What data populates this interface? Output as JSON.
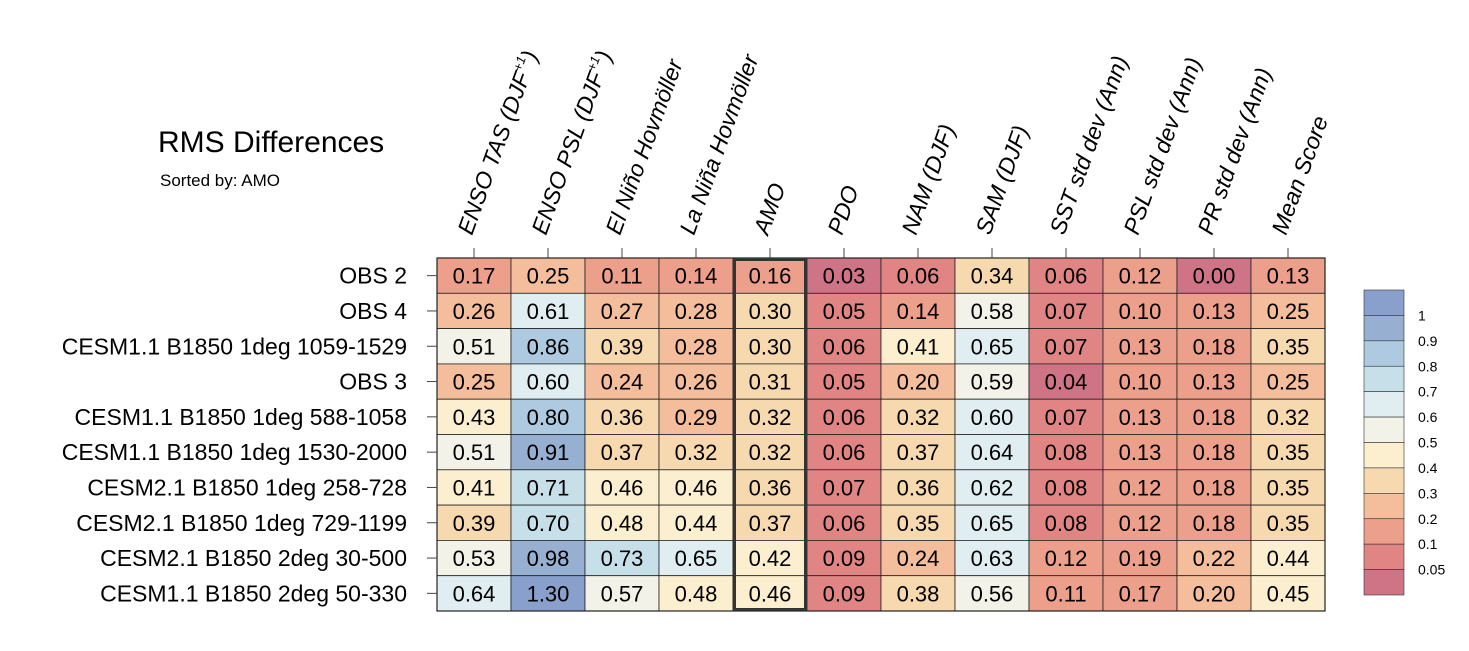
{
  "chart_data": {
    "type": "heatmap",
    "title": "RMS Differences",
    "subtitle": "Sorted by: AMO",
    "highlighted_column": "AMO",
    "columns": [
      "ENSO TAS (DJF+1)",
      "ENSO PSL (DJF+1)",
      "El Niño Hovmöller",
      "La Niña Hovmöller",
      "AMO",
      "PDO",
      "NAM (DJF)",
      "SAM (DJF)",
      "SST std dev (Ann)",
      "PSL std dev (Ann)",
      "PR std dev (Ann)",
      "Mean Score"
    ],
    "rows": [
      "OBS 2",
      "OBS 4",
      "CESM1.1 B1850 1deg 1059-1529",
      "OBS 3",
      "CESM1.1 B1850 1deg 588-1058",
      "CESM1.1 B1850 1deg 1530-2000",
      "CESM2.1 B1850 1deg 258-728",
      "CESM2.1 B1850 1deg 729-1199",
      "CESM2.1 B1850 2deg 30-500",
      "CESM1.1 B1850 2deg 50-330"
    ],
    "values": [
      [
        "0.17",
        "0.25",
        "0.11",
        "0.14",
        "0.16",
        "0.03",
        "0.06",
        "0.34",
        "0.06",
        "0.12",
        "0.00",
        "0.13"
      ],
      [
        "0.26",
        "0.61",
        "0.27",
        "0.28",
        "0.30",
        "0.05",
        "0.14",
        "0.58",
        "0.07",
        "0.10",
        "0.13",
        "0.25"
      ],
      [
        "0.51",
        "0.86",
        "0.39",
        "0.28",
        "0.30",
        "0.06",
        "0.41",
        "0.65",
        "0.07",
        "0.13",
        "0.18",
        "0.35"
      ],
      [
        "0.25",
        "0.60",
        "0.24",
        "0.26",
        "0.31",
        "0.05",
        "0.20",
        "0.59",
        "0.04",
        "0.10",
        "0.13",
        "0.25"
      ],
      [
        "0.43",
        "0.80",
        "0.36",
        "0.29",
        "0.32",
        "0.06",
        "0.32",
        "0.60",
        "0.07",
        "0.13",
        "0.18",
        "0.32"
      ],
      [
        "0.51",
        "0.91",
        "0.37",
        "0.32",
        "0.32",
        "0.06",
        "0.37",
        "0.64",
        "0.08",
        "0.13",
        "0.18",
        "0.35"
      ],
      [
        "0.41",
        "0.71",
        "0.46",
        "0.46",
        "0.36",
        "0.07",
        "0.36",
        "0.62",
        "0.08",
        "0.12",
        "0.18",
        "0.35"
      ],
      [
        "0.39",
        "0.70",
        "0.48",
        "0.44",
        "0.37",
        "0.06",
        "0.35",
        "0.65",
        "0.08",
        "0.12",
        "0.18",
        "0.35"
      ],
      [
        "0.53",
        "0.98",
        "0.73",
        "0.65",
        "0.42",
        "0.09",
        "0.24",
        "0.63",
        "0.12",
        "0.19",
        "0.22",
        "0.44"
      ],
      [
        "0.64",
        "1.30",
        "0.57",
        "0.48",
        "0.46",
        "0.09",
        "0.38",
        "0.56",
        "0.11",
        "0.17",
        "0.20",
        "0.45"
      ]
    ],
    "colorbar": {
      "labels": [
        "1",
        "0.9",
        "0.8",
        "0.7",
        "0.6",
        "0.5",
        "0.4",
        "0.3",
        "0.2",
        "0.1",
        "0.05"
      ],
      "bounds": [
        0.05,
        0.1,
        0.2,
        0.3,
        0.4,
        0.5,
        0.6,
        0.7,
        0.8,
        0.9,
        1.0
      ],
      "colors": [
        "#cf7486",
        "#e08583",
        "#ec9f8a",
        "#f4bd9b",
        "#f7d9b0",
        "#fcefcf",
        "#f2f2e9",
        "#e0eef2",
        "#c6dfe9",
        "#adcae0",
        "#97b0d2",
        "#8aa0cc"
      ]
    }
  }
}
